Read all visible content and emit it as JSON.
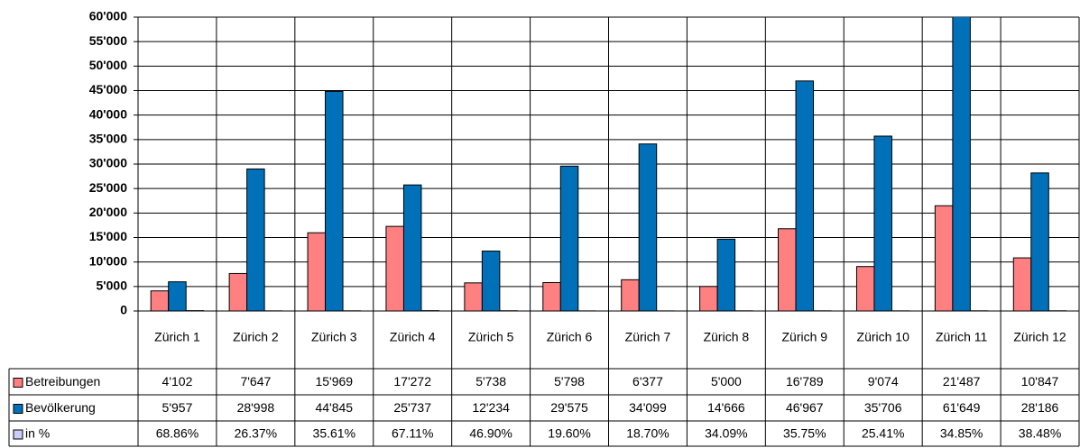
{
  "chart_data": {
    "type": "bar",
    "categories": [
      "Zürich 1",
      "Zürich 2",
      "Zürich 3",
      "Zürich 4",
      "Zürich 5",
      "Zürich 6",
      "Zürich 7",
      "Zürich 8",
      "Zürich 9",
      "Zürich 10",
      "Zürich 11",
      "Zürich 12"
    ],
    "series": [
      {
        "name": "Betreibungen",
        "color": "#ff8080",
        "values": [
          4102,
          7647,
          15969,
          17272,
          5738,
          5798,
          6377,
          5000,
          16789,
          9074,
          21487,
          10847
        ],
        "value_labels": [
          "4'102",
          "7'647",
          "15'969",
          "17'272",
          "5'738",
          "5'798",
          "6'377",
          "5'000",
          "16'789",
          "9'074",
          "21'487",
          "10'847"
        ]
      },
      {
        "name": "Bevölkerung",
        "color": "#0070b8",
        "values": [
          5957,
          28998,
          44845,
          25737,
          12234,
          29575,
          34099,
          14666,
          46967,
          35706,
          61649,
          28186
        ],
        "value_labels": [
          "5'957",
          "28'998",
          "44'845",
          "25'737",
          "12'234",
          "29'575",
          "34'099",
          "14'666",
          "46'967",
          "35'706",
          "61'649",
          "28'186"
        ]
      },
      {
        "name": "in %",
        "color": "#ccccff",
        "values": [
          68.86,
          26.37,
          35.61,
          67.11,
          46.9,
          19.6,
          18.7,
          34.09,
          35.75,
          25.41,
          34.85,
          38.48
        ],
        "value_labels": [
          "68.86%",
          "26.37%",
          "35.61%",
          "67.11%",
          "46.90%",
          "19.60%",
          "18.70%",
          "34.09%",
          "35.75%",
          "25.41%",
          "34.85%",
          "38.48%"
        ]
      }
    ],
    "ylim": [
      0,
      60000
    ],
    "yticks": [
      0,
      {
        "value": 5000,
        "label": "5'000"
      },
      {
        "value": 10000,
        "label": "10'000"
      },
      {
        "value": 15000,
        "label": "15'000"
      },
      {
        "value": 20000,
        "label": "20'000"
      },
      {
        "value": 25000,
        "label": "25'000"
      },
      {
        "value": 30000,
        "label": "30'000"
      },
      {
        "value": 35000,
        "label": "35'000"
      },
      {
        "value": 40000,
        "label": "40'000"
      },
      {
        "value": 45000,
        "label": "45'000"
      },
      {
        "value": 50000,
        "label": "50'000"
      },
      {
        "value": 55000,
        "label": "55'000"
      },
      {
        "value": 60000,
        "label": "60'000"
      }
    ],
    "grid": true
  }
}
